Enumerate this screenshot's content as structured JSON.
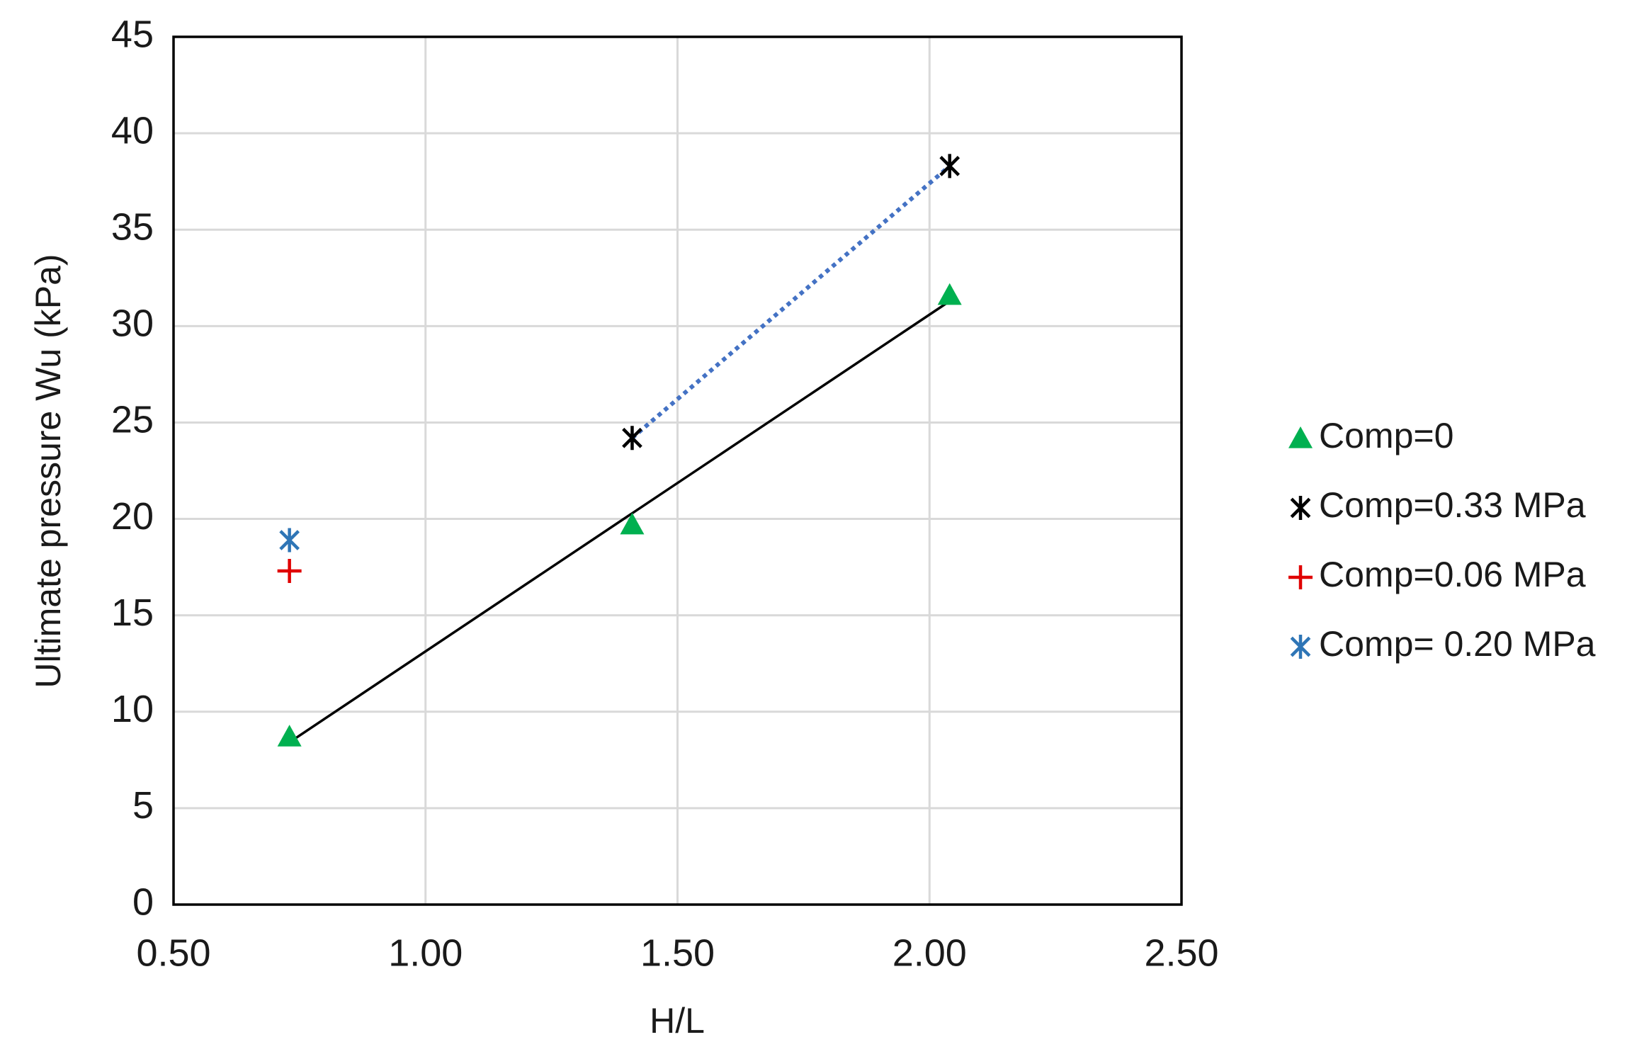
{
  "chart_data": {
    "type": "scatter",
    "x_label": "H/L",
    "y_label": "Ultimate pressure Wu (kPa)",
    "xlim": [
      0.5,
      2.5
    ],
    "xticks": [
      {
        "value": 0.5,
        "label": "0.50"
      },
      {
        "value": 1.0,
        "label": "1.00"
      },
      {
        "value": 1.5,
        "label": "1.50"
      },
      {
        "value": 2.0,
        "label": "2.00"
      },
      {
        "value": 2.5,
        "label": "2.50"
      }
    ],
    "ylim": [
      0,
      45
    ],
    "yticks": [
      0,
      5,
      10,
      15,
      20,
      25,
      30,
      35,
      40,
      45
    ],
    "grid": true,
    "legend": "right",
    "series": [
      {
        "name": "Comp=0",
        "color": "#00b050",
        "marker": "triangle",
        "x": [
          0.73,
          1.41,
          2.04
        ],
        "values": [
          8.7,
          19.7,
          31.6
        ],
        "trendline": "solid",
        "trendline_color": "#000000"
      },
      {
        "name": "Comp=0.33 MPa",
        "color": "#000000",
        "marker": "star",
        "x": [
          1.41,
          2.04
        ],
        "values": [
          24.2,
          38.3
        ],
        "trendline": "dotted",
        "trendline_color": "#4472c4"
      },
      {
        "name": "Comp=0.06 MPa",
        "color": "#e00000",
        "marker": "plus",
        "x": [
          0.73
        ],
        "values": [
          17.3
        ]
      },
      {
        "name": "Comp= 0.20 MPa",
        "color": "#2e75b6",
        "marker": "asterisk",
        "x": [
          0.73
        ],
        "values": [
          18.9
        ]
      }
    ]
  }
}
